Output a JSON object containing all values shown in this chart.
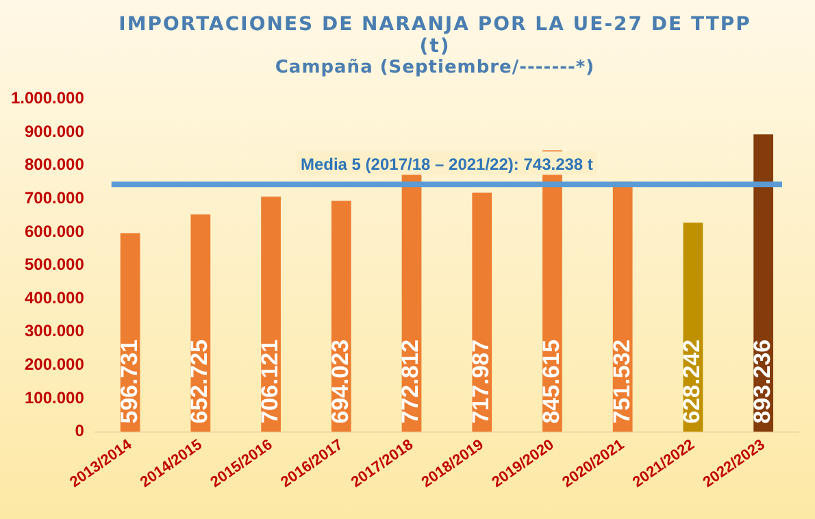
{
  "chart_data": {
    "type": "bar",
    "title": "IMPORTACIONES DE NARANJA POR LA UE-27 DE TTPP",
    "subtitle": "(t)",
    "annotations": [
      "Campaña (Septiembre/-------*)"
    ],
    "categories": [
      "2013/2014",
      "2014/2015",
      "2015/2016",
      "2016/2017",
      "2017/2018",
      "2018/2019",
      "2019/2020",
      "2020/2021",
      "2021/2022",
      "2022/2023"
    ],
    "values": [
      596731,
      652725,
      706121,
      694023,
      772812,
      717987,
      845615,
      751532,
      628242,
      893236
    ],
    "value_labels": [
      "596.731",
      "652.725",
      "706.121",
      "694.023",
      "772.812",
      "717.987",
      "845.615",
      "751.532",
      "628.242",
      "893.236"
    ],
    "colors": [
      "#ed7d31",
      "#ed7d31",
      "#ed7d31",
      "#ed7d31",
      "#ed7d31",
      "#ed7d31",
      "#ed7d31",
      "#ed7d31",
      "#bf9000",
      "#843c0c"
    ],
    "ylim": [
      0,
      1000000
    ],
    "yticks": [
      0,
      {
        "value": 100000,
        "label": "100.000"
      },
      {
        "value": 200000,
        "label": "200.000"
      },
      {
        "value": 300000,
        "label": "300.000"
      },
      {
        "value": 400000,
        "label": "400.000"
      },
      {
        "value": 500000,
        "label": "500.000"
      },
      {
        "value": 600000,
        "label": "600.000"
      },
      {
        "value": 700000,
        "label": "700.000"
      },
      {
        "value": 800000,
        "label": "800.000"
      },
      {
        "value": 900000,
        "label": "900.000"
      },
      {
        "value": 1000000,
        "label": "1.000.000"
      }
    ],
    "ref_lines": [
      {
        "axis": "y",
        "value": 743238,
        "label": "Media 5 (2017/18 – 2021/22): 743.238 t",
        "color": "#5b9bd5"
      }
    ],
    "grid": false,
    "legend": false
  }
}
